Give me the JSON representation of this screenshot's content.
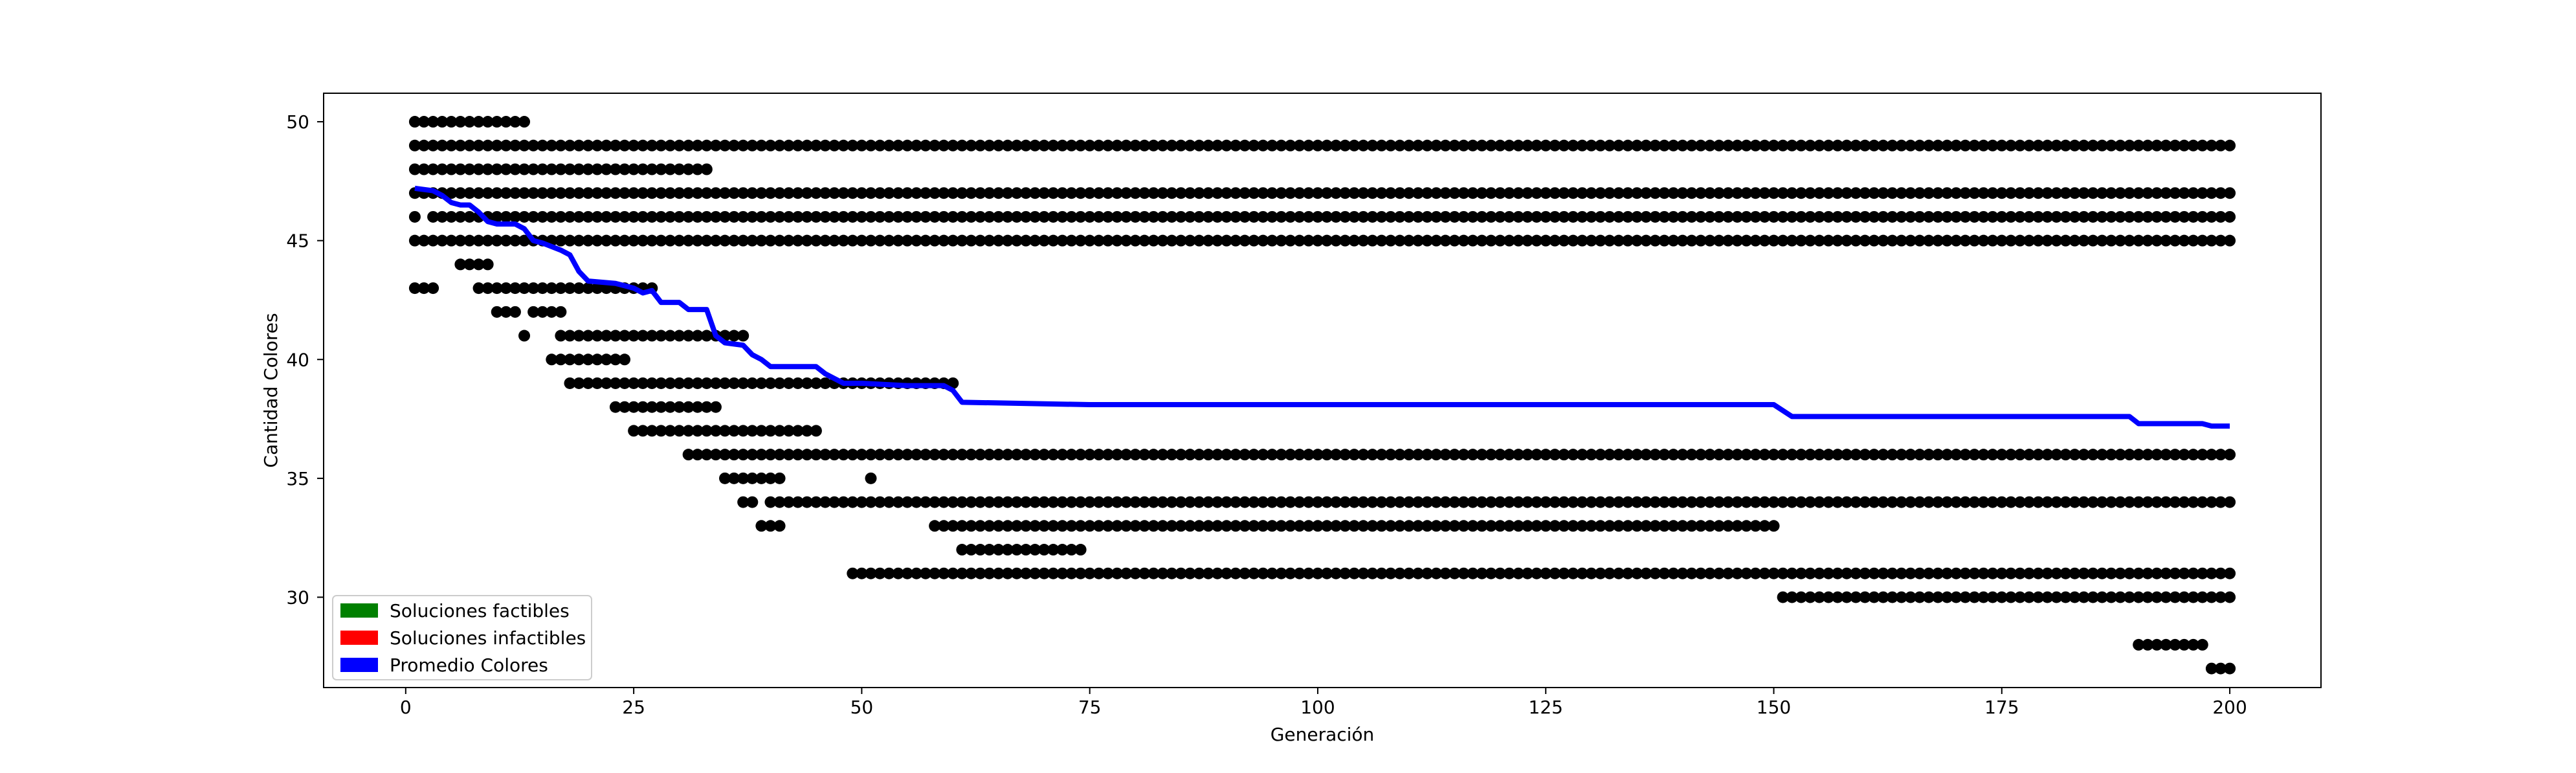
{
  "chart_data": {
    "type": "scatter",
    "title": "",
    "xlabel": "Generación",
    "ylabel": "Cantidad Colores",
    "xlim": [
      -9,
      210
    ],
    "ylim": [
      26.2,
      51.2
    ],
    "xticks": [
      0,
      25,
      50,
      75,
      100,
      125,
      150,
      175,
      200
    ],
    "yticks": [
      30,
      35,
      40,
      45,
      50
    ],
    "grid": false,
    "legend_position": "lower-left",
    "legend": [
      {
        "label": "Soluciones factibles",
        "color": "#008000"
      },
      {
        "label": "Soluciones infactibles",
        "color": "#ff0000"
      },
      {
        "label": "Promedio Colores",
        "color": "#0000ff"
      }
    ],
    "scatter_color": "#000000",
    "scatter_runs": [
      {
        "y": 50,
        "x_start": 1,
        "x_end": 13
      },
      {
        "y": 49,
        "x_start": 1,
        "x_end": 200
      },
      {
        "y": 48,
        "x_start": 1,
        "x_end": 33
      },
      {
        "y": 47,
        "x_start": 1,
        "x_end": 200
      },
      {
        "y": 46,
        "x_start": 1,
        "x_end": 1
      },
      {
        "y": 46,
        "x_start": 3,
        "x_end": 200
      },
      {
        "y": 45,
        "x_start": 1,
        "x_end": 200
      },
      {
        "y": 44,
        "x_start": 6,
        "x_end": 9
      },
      {
        "y": 43,
        "x_start": 1,
        "x_end": 3
      },
      {
        "y": 43,
        "x_start": 8,
        "x_end": 27
      },
      {
        "y": 42,
        "x_start": 10,
        "x_end": 12
      },
      {
        "y": 42,
        "x_start": 14,
        "x_end": 17
      },
      {
        "y": 41,
        "x_start": 13,
        "x_end": 13
      },
      {
        "y": 41,
        "x_start": 17,
        "x_end": 37
      },
      {
        "y": 40,
        "x_start": 16,
        "x_end": 24
      },
      {
        "y": 39,
        "x_start": 18,
        "x_end": 60
      },
      {
        "y": 38,
        "x_start": 23,
        "x_end": 34
      },
      {
        "y": 37,
        "x_start": 25,
        "x_end": 45
      },
      {
        "y": 36,
        "x_start": 31,
        "x_end": 200
      },
      {
        "y": 35,
        "x_start": 35,
        "x_end": 41
      },
      {
        "y": 35,
        "x_start": 51,
        "x_end": 51
      },
      {
        "y": 34,
        "x_start": 37,
        "x_end": 38
      },
      {
        "y": 34,
        "x_start": 40,
        "x_end": 200
      },
      {
        "y": 33,
        "x_start": 39,
        "x_end": 41
      },
      {
        "y": 33,
        "x_start": 58,
        "x_end": 150
      },
      {
        "y": 32,
        "x_start": 61,
        "x_end": 74
      },
      {
        "y": 31,
        "x_start": 49,
        "x_end": 200
      },
      {
        "y": 30,
        "x_start": 151,
        "x_end": 200
      },
      {
        "y": 28,
        "x_start": 190,
        "x_end": 197
      },
      {
        "y": 27,
        "x_start": 198,
        "x_end": 200
      }
    ],
    "series": [
      {
        "name": "Promedio Colores",
        "color": "#0000ff",
        "x": [
          1,
          3,
          4,
          5,
          6,
          7,
          8,
          9,
          10,
          12,
          13,
          14,
          15,
          17,
          18,
          19,
          20,
          23,
          24,
          25,
          26,
          27,
          28,
          30,
          31,
          33,
          34,
          35,
          37,
          38,
          39,
          40,
          45,
          46,
          47,
          48,
          50,
          55,
          59,
          60,
          61,
          75,
          150,
          152,
          189,
          190,
          197,
          198,
          200
        ],
        "y": [
          47.2,
          47.1,
          46.9,
          46.6,
          46.5,
          46.5,
          46.2,
          45.8,
          45.7,
          45.7,
          45.5,
          45.0,
          44.9,
          44.6,
          44.4,
          43.7,
          43.3,
          43.2,
          43.1,
          43.0,
          42.8,
          42.9,
          42.4,
          42.4,
          42.1,
          42.1,
          41.0,
          40.7,
          40.6,
          40.2,
          40.0,
          39.7,
          39.7,
          39.4,
          39.2,
          39.0,
          39.0,
          38.9,
          38.9,
          38.7,
          38.2,
          38.1,
          38.1,
          37.6,
          37.6,
          37.3,
          37.3,
          37.2,
          37.2
        ]
      }
    ]
  }
}
